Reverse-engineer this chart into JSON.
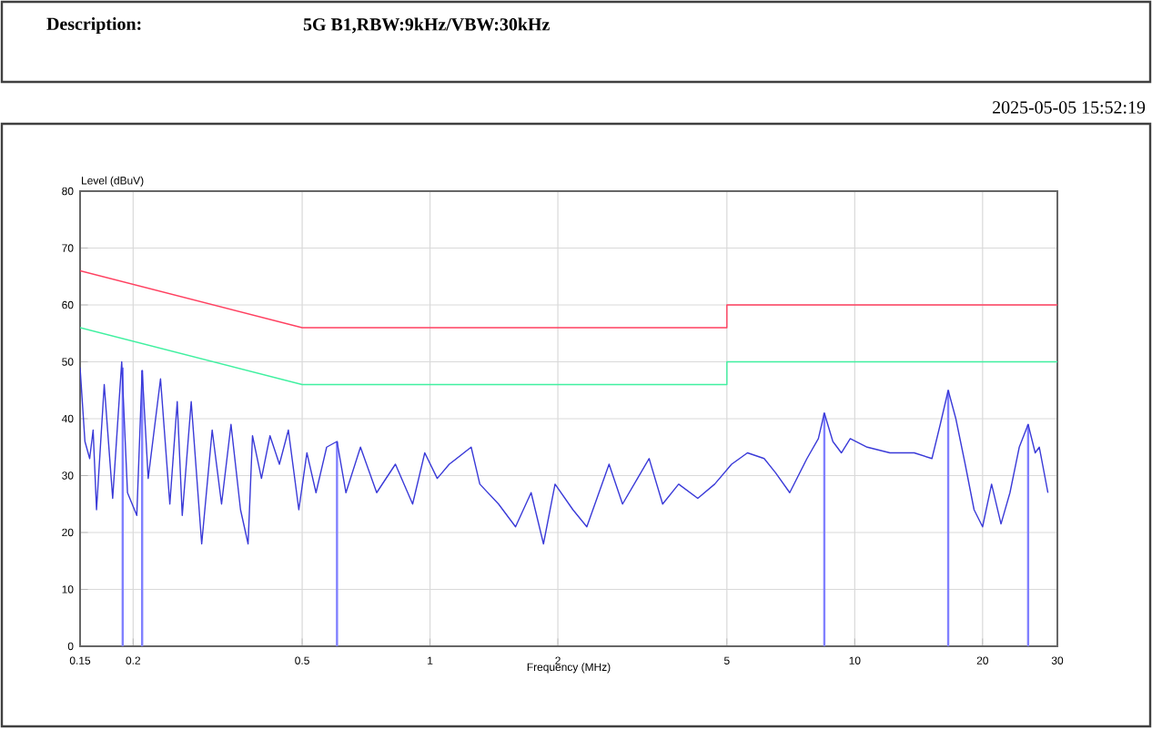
{
  "chart_data": {
    "type": "line",
    "title": "Description:",
    "subtitle": "5G B1,RBW:9kHz/VBW:30kHz",
    "annotations": [
      "2025-05-05 15:52:19"
    ],
    "xlabel": "Frequency (MHz)",
    "ylabel": "Level (dBuV)",
    "log": "x",
    "grid": true,
    "xlim": [
      0.15,
      30
    ],
    "ylim": [
      0,
      80
    ],
    "xticks": [
      0.15,
      0.2,
      0.5,
      1,
      2,
      5,
      10,
      20,
      30
    ],
    "yticks": [
      0,
      10,
      20,
      30,
      40,
      50,
      60,
      70,
      80
    ],
    "series": [
      {
        "type": "line",
        "color": "#ff4060",
        "x": [
          0.15,
          0.5,
          5,
          5,
          30
        ],
        "values": [
          66,
          56,
          56,
          60,
          60
        ]
      },
      {
        "type": "line",
        "color": "#40f0a0",
        "x": [
          0.15,
          0.5,
          5,
          5,
          30
        ],
        "values": [
          56,
          46,
          46,
          50,
          50
        ]
      },
      {
        "type": "bar",
        "color": "#8080ff",
        "x": [
          0.189,
          0.21,
          0.604,
          8.48,
          16.6,
          25.6
        ],
        "values": [
          49,
          48.5,
          36,
          41,
          45,
          39
        ]
      },
      {
        "color": "#3a3ad8",
        "x": [
          0.15,
          0.154,
          0.158,
          0.161,
          0.164,
          0.171,
          0.179,
          0.188,
          0.194,
          0.204,
          0.21,
          0.217,
          0.232,
          0.244,
          0.254,
          0.261,
          0.274,
          0.29,
          0.307,
          0.323,
          0.34,
          0.358,
          0.373,
          0.382,
          0.401,
          0.42,
          0.442,
          0.464,
          0.491,
          0.513,
          0.539,
          0.571,
          0.604,
          0.634,
          0.686,
          0.749,
          0.829,
          0.91,
          0.972,
          1.04,
          1.11,
          1.25,
          1.31,
          1.45,
          1.59,
          1.73,
          1.85,
          1.97,
          2.17,
          2.34,
          2.64,
          2.84,
          3.08,
          3.28,
          3.53,
          3.85,
          4.27,
          4.68,
          5.13,
          5.59,
          6.12,
          6.51,
          7.03,
          7.72,
          8.21,
          8.48,
          8.88,
          9.3,
          9.76,
          10.7,
          12.1,
          13.8,
          15.2,
          15.9,
          16.6,
          17.3,
          18.2,
          19.1,
          20.0,
          21.0,
          22.1,
          23.2,
          24.4,
          25.6,
          26.6,
          27.2,
          28.5
        ],
        "values": [
          49,
          36,
          33,
          38,
          24,
          46,
          26,
          50,
          27,
          23,
          48.5,
          29.5,
          47,
          25,
          43,
          23,
          43,
          18,
          38,
          25,
          39,
          24,
          18,
          37,
          29.5,
          37,
          32,
          38,
          24,
          34,
          27,
          35,
          36,
          27,
          35,
          27,
          32,
          25,
          34,
          29.5,
          32,
          35,
          28.5,
          25,
          21,
          27,
          18,
          28.5,
          24,
          21,
          32,
          25,
          29.5,
          33,
          25,
          28.5,
          26,
          28.5,
          32,
          34,
          33,
          30.5,
          27,
          33,
          36.5,
          41,
          36,
          34,
          36.5,
          35,
          34,
          34,
          33,
          39,
          45,
          40,
          32,
          24,
          21,
          28.5,
          21.5,
          27,
          35,
          39,
          34,
          35,
          27
        ]
      }
    ]
  }
}
